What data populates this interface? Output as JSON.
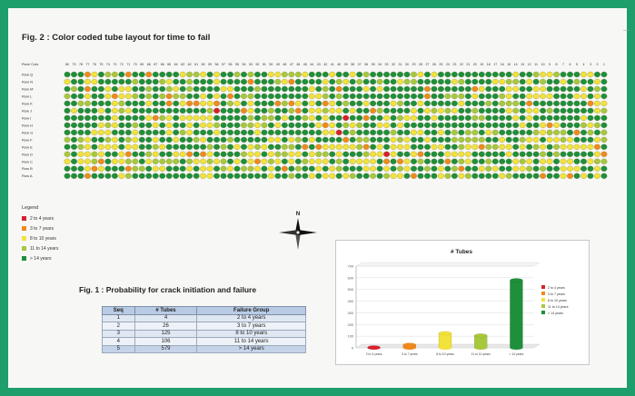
{
  "fig2_title": "Fig. 2 : Color coded tube layout for time to fail",
  "fig1_title": "Fig. 1 :  Probability for crack initiation and failure",
  "row_cols_label": "Row/ Cols",
  "column_numbers": [
    80,
    79,
    78,
    77,
    76,
    75,
    74,
    73,
    72,
    71,
    70,
    69,
    68,
    67,
    66,
    65,
    64,
    63,
    62,
    61,
    60,
    59,
    58,
    57,
    56,
    55,
    54,
    53,
    52,
    51,
    50,
    49,
    48,
    47,
    46,
    45,
    44,
    43,
    42,
    41,
    40,
    39,
    38,
    37,
    36,
    35,
    34,
    33,
    32,
    31,
    30,
    29,
    28,
    27,
    26,
    25,
    24,
    23,
    22,
    21,
    20,
    19,
    18,
    17,
    16,
    15,
    14,
    13,
    12,
    11,
    10,
    9,
    8,
    7,
    6,
    5,
    4,
    3,
    2,
    1
  ],
  "row_labels": [
    "Row Q",
    "Row N",
    "Row M",
    "Row L",
    "Row K",
    "Row J",
    "Row I",
    "Row H",
    "Row G",
    "Row F",
    "Row E",
    "Row D",
    "Row C",
    "Row B",
    "Row A"
  ],
  "status_colors": {
    "2to4": "#d8202e",
    "3to7": "#f08a1c",
    "8to10": "#f2e23a",
    "11to14": "#a8c83c",
    "gt14": "#1e8f3a"
  },
  "legend": {
    "title": "Legend",
    "items": [
      {
        "label": "2 to 4 years",
        "color": "#d8202e"
      },
      {
        "label": "3 to 7 years",
        "color": "#f08a1c"
      },
      {
        "label": "8 to 10 years",
        "color": "#f2e23a"
      },
      {
        "label": "11 to 14 years",
        "color": "#a8c83c"
      },
      {
        "label": "> 14 years",
        "color": "#1e8f3a"
      }
    ]
  },
  "compass_label": "N",
  "table": {
    "headers": [
      "Seq",
      "# Tubes",
      "Failure Group"
    ],
    "rows": [
      [
        "1",
        "4",
        "2 to 4 years"
      ],
      [
        "2",
        "26",
        "3 to 7 years"
      ],
      [
        "3",
        "125",
        "8 to 10 years"
      ],
      [
        "4",
        "106",
        "11 to 14 years"
      ],
      [
        "5",
        "579",
        "> 14 years"
      ]
    ]
  },
  "chart_data": {
    "type": "bar",
    "title": "# Tubes",
    "categories": [
      "2 to 4 years",
      "3 to 7 years",
      "8 to 10 years",
      "11 to 14 years",
      "> 14 years"
    ],
    "values": [
      4,
      26,
      125,
      106,
      579
    ],
    "colors": [
      "#d8202e",
      "#f08a1c",
      "#f2e23a",
      "#a8c83c",
      "#1e8f3a"
    ],
    "ylim": [
      0,
      700
    ],
    "yticks": [
      0,
      100,
      200,
      300,
      400,
      500,
      600,
      700
    ],
    "xlabel": "",
    "ylabel": "",
    "grid": true,
    "legend_position": "right"
  }
}
